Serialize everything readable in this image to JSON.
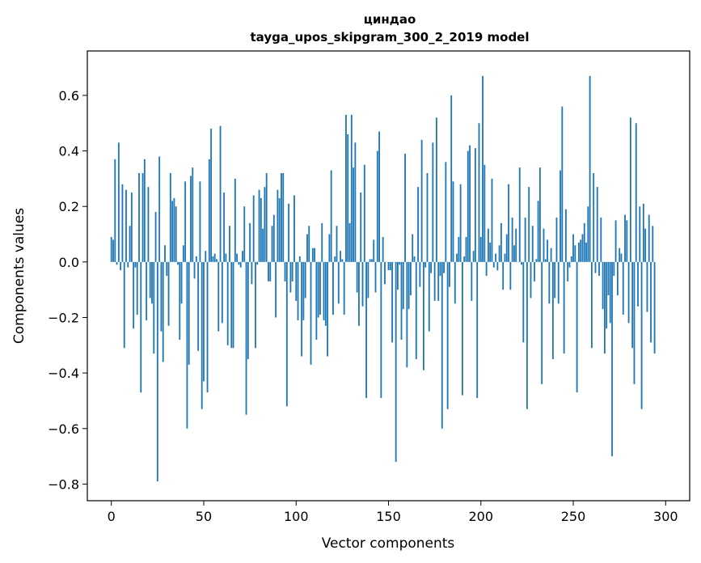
{
  "chart_data": {
    "type": "bar",
    "title": "циндао",
    "subtitle": "tayga_upos_skipgram_300_2_2019 model",
    "xlabel": "Vector components",
    "ylabel": "Components values",
    "xlim": [
      -13,
      313
    ],
    "ylim": [
      -0.86,
      0.76
    ],
    "xticks": [
      0,
      50,
      100,
      150,
      200,
      250,
      300
    ],
    "yticks": [
      -0.8,
      -0.6,
      -0.4,
      -0.2,
      0.0,
      0.2,
      0.4,
      0.6
    ],
    "ytick_labels": [
      "−0.8",
      "−0.6",
      "−0.4",
      "−0.2",
      "0.0",
      "0.2",
      "0.4",
      "0.6"
    ],
    "bar_color": "#1f77b4",
    "values": [
      0.09,
      0.08,
      0.37,
      -0.01,
      0.43,
      -0.03,
      0.28,
      -0.31,
      0.26,
      -0.02,
      0.13,
      0.25,
      -0.24,
      -0.02,
      -0.19,
      0.32,
      -0.47,
      0.32,
      0.37,
      -0.21,
      0.27,
      -0.13,
      -0.15,
      -0.33,
      0.18,
      -0.79,
      0.38,
      -0.25,
      -0.36,
      0.06,
      -0.05,
      -0.23,
      0.32,
      0.22,
      0.23,
      0.2,
      -0.01,
      -0.28,
      -0.15,
      0.06,
      0.29,
      -0.6,
      -0.37,
      0.31,
      0.34,
      -0.06,
      0.02,
      -0.32,
      0.29,
      -0.53,
      -0.43,
      0.04,
      -0.47,
      0.37,
      0.48,
      0.02,
      0.03,
      0.01,
      -0.25,
      0.49,
      -0.22,
      0.25,
      0.03,
      -0.3,
      0.13,
      -0.31,
      -0.31,
      0.3,
      0.03,
      -0.01,
      -0.02,
      0.04,
      0.2,
      -0.55,
      -0.35,
      0.14,
      -0.08,
      0.24,
      -0.31,
      -0.01,
      0.26,
      0.23,
      0.12,
      0.27,
      0.32,
      -0.07,
      -0.07,
      0.13,
      0.17,
      -0.2,
      0.26,
      0.23,
      0.32,
      0.32,
      -0.07,
      -0.52,
      0.21,
      -0.11,
      -0.07,
      0.24,
      -0.14,
      -0.21,
      0.02,
      -0.34,
      -0.21,
      -0.13,
      0.1,
      0.13,
      -0.37,
      0.05,
      0.05,
      -0.28,
      -0.2,
      -0.19,
      0.14,
      -0.21,
      -0.23,
      -0.34,
      0.1,
      0.33,
      -0.19,
      0.02,
      0.13,
      -0.15,
      0.04,
      0.01,
      -0.19,
      0.53,
      0.46,
      0.14,
      0.53,
      0.34,
      0.43,
      -0.11,
      -0.23,
      0.25,
      -0.16,
      0.35,
      -0.49,
      -0.13,
      0.01,
      0.01,
      0.08,
      -0.11,
      0.4,
      0.47,
      -0.49,
      0.09,
      -0.08,
      0.0,
      -0.03,
      -0.03,
      -0.29,
      0.0,
      -0.72,
      -0.1,
      -0.01,
      -0.28,
      -0.17,
      0.39,
      -0.38,
      -0.17,
      -0.12,
      0.1,
      0.02,
      -0.35,
      0.27,
      -0.09,
      0.44,
      -0.39,
      -0.02,
      0.32,
      -0.25,
      -0.04,
      0.43,
      -0.14,
      0.52,
      -0.14,
      -0.05,
      -0.6,
      -0.04,
      0.36,
      -0.53,
      -0.09,
      0.6,
      0.29,
      -0.15,
      0.03,
      0.09,
      0.28,
      -0.48,
      0.02,
      0.09,
      0.4,
      0.42,
      -0.14,
      0.04,
      0.41,
      -0.49,
      0.5,
      0.09,
      0.67,
      0.35,
      -0.05,
      0.12,
      0.07,
      0.3,
      -0.02,
      0.03,
      -0.03,
      0.06,
      0.14,
      -0.1,
      0.03,
      0.1,
      0.28,
      -0.1,
      0.16,
      0.06,
      0.12,
      0.0,
      0.34,
      -0.01,
      -0.29,
      0.16,
      -0.53,
      0.27,
      -0.13,
      0.13,
      -0.07,
      0.01,
      0.22,
      0.34,
      -0.44,
      0.12,
      0.01,
      0.08,
      -0.15,
      0.05,
      -0.35,
      -0.13,
      0.16,
      -0.15,
      0.33,
      0.56,
      -0.33,
      0.19,
      -0.07,
      -0.02,
      0.02,
      0.1,
      0.06,
      -0.47,
      0.07,
      0.08,
      0.1,
      0.14,
      0.07,
      0.2,
      0.67,
      -0.31,
      0.32,
      -0.04,
      0.27,
      -0.05,
      0.16,
      -0.17,
      -0.33,
      -0.24,
      -0.12,
      -0.22,
      -0.7,
      -0.05,
      0.15,
      -0.12,
      0.05,
      0.03,
      -0.19,
      0.17,
      0.15,
      -0.22,
      0.52,
      -0.31,
      -0.44,
      0.5,
      -0.16,
      0.2,
      -0.53,
      0.21,
      0.12,
      -0.18,
      0.17,
      -0.29,
      0.13,
      -0.33
    ]
  }
}
